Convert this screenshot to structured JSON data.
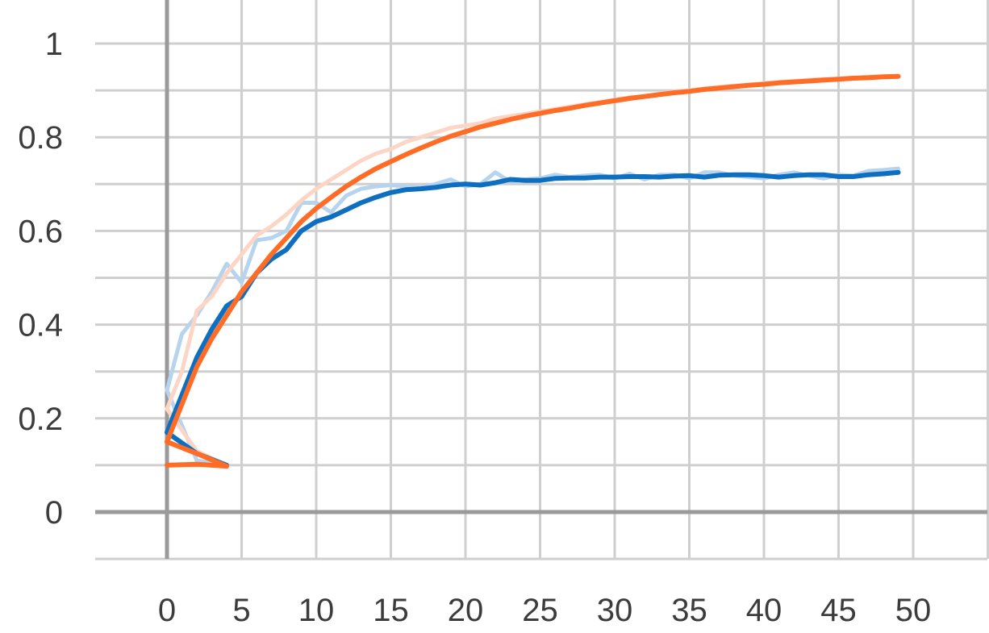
{
  "chart_data": {
    "type": "line",
    "title": "",
    "xlabel": "",
    "ylabel": "",
    "xlim": [
      -5,
      55
    ],
    "ylim": [
      -0.1,
      1.05
    ],
    "x_ticks": [
      "0",
      "5",
      "10",
      "15",
      "20",
      "25",
      "30",
      "35",
      "40",
      "45",
      "50"
    ],
    "y_ticks": [
      "0",
      "0.2",
      "0.4",
      "0.6",
      "0.8",
      "1"
    ],
    "grid": true,
    "legend": "none",
    "series": [
      {
        "color": "#0e6fc1",
        "raw_color": "#b7d4ee",
        "segments": [
          {
            "x": [
              0,
              2,
              4
            ],
            "smoothed": [
              0.17,
              0.125,
              0.1
            ],
            "raw": [
              0.26,
              0.11,
              0.1
            ]
          },
          {
            "x": [
              0,
              1,
              2,
              3,
              4,
              5,
              6,
              7,
              8,
              9,
              10,
              11,
              12,
              13,
              14,
              15,
              16,
              17,
              18,
              19,
              20,
              21,
              22,
              23,
              24,
              25,
              26,
              27,
              28,
              29,
              30,
              31,
              32,
              33,
              34,
              35,
              36,
              37,
              38,
              39,
              40,
              41,
              42,
              43,
              44,
              45,
              46,
              47,
              48,
              49
            ],
            "smoothed": [
              0.17,
              0.25,
              0.33,
              0.39,
              0.44,
              0.46,
              0.51,
              0.54,
              0.56,
              0.6,
              0.62,
              0.63,
              0.645,
              0.66,
              0.672,
              0.682,
              0.688,
              0.69,
              0.693,
              0.698,
              0.7,
              0.698,
              0.703,
              0.71,
              0.708,
              0.708,
              0.712,
              0.713,
              0.713,
              0.715,
              0.715,
              0.716,
              0.716,
              0.715,
              0.717,
              0.718,
              0.715,
              0.719,
              0.72,
              0.72,
              0.718,
              0.715,
              0.718,
              0.72,
              0.72,
              0.716,
              0.716,
              0.72,
              0.722,
              0.725
            ],
            "raw": [
              0.26,
              0.38,
              0.42,
              0.47,
              0.53,
              0.49,
              0.58,
              0.585,
              0.6,
              0.66,
              0.66,
              0.64,
              0.675,
              0.69,
              0.695,
              0.698,
              0.695,
              0.693,
              0.7,
              0.71,
              0.695,
              0.7,
              0.725,
              0.705,
              0.71,
              0.712,
              0.72,
              0.715,
              0.718,
              0.72,
              0.712,
              0.722,
              0.71,
              0.72,
              0.72,
              0.712,
              0.725,
              0.725,
              0.718,
              0.715,
              0.712,
              0.72,
              0.725,
              0.718,
              0.712,
              0.72,
              0.718,
              0.728,
              0.73,
              0.733
            ]
          }
        ]
      },
      {
        "color": "#fe6c26",
        "raw_color": "#fdd5c5",
        "segments": [
          {
            "x": [
              0,
              2,
              4
            ],
            "smoothed": [
              0.1,
              0.102,
              0.098
            ],
            "raw": [
              0.1,
              0.1,
              0.1
            ]
          },
          {
            "x": [
              0,
              2,
              4
            ],
            "smoothed": [
              0.15,
              0.125,
              0.098
            ],
            "raw": [
              0.22,
              0.13,
              0.1
            ]
          },
          {
            "x": [
              0,
              1,
              2,
              3,
              4,
              5,
              6,
              7,
              8,
              9,
              10,
              11,
              12,
              13,
              14,
              15,
              16,
              17,
              18,
              19,
              20,
              21,
              22,
              23,
              24,
              25,
              26,
              27,
              28,
              29,
              30,
              31,
              32,
              33,
              34,
              35,
              36,
              37,
              38,
              39,
              40,
              41,
              42,
              43,
              44,
              45,
              46,
              47,
              48,
              49
            ],
            "smoothed": [
              0.15,
              0.23,
              0.31,
              0.37,
              0.42,
              0.47,
              0.51,
              0.55,
              0.585,
              0.62,
              0.648,
              0.672,
              0.695,
              0.715,
              0.733,
              0.748,
              0.763,
              0.777,
              0.79,
              0.802,
              0.812,
              0.822,
              0.83,
              0.838,
              0.845,
              0.851,
              0.857,
              0.862,
              0.868,
              0.873,
              0.878,
              0.883,
              0.887,
              0.891,
              0.895,
              0.898,
              0.902,
              0.905,
              0.908,
              0.911,
              0.913,
              0.916,
              0.918,
              0.92,
              0.922,
              0.924,
              0.926,
              0.927,
              0.929,
              0.93
            ],
            "raw": [
              0.22,
              0.3,
              0.43,
              0.46,
              0.51,
              0.55,
              0.59,
              0.61,
              0.635,
              0.665,
              0.69,
              0.71,
              0.73,
              0.75,
              0.765,
              0.775,
              0.79,
              0.8,
              0.81,
              0.82,
              0.825,
              0.83,
              0.84,
              0.845,
              0.85,
              0.855,
              0.86,
              0.865,
              0.87,
              0.875,
              0.88,
              0.885,
              0.888,
              0.893,
              0.897,
              0.9,
              0.904,
              0.907,
              0.91,
              0.912,
              0.915,
              0.918,
              0.92,
              0.922,
              0.924,
              0.925,
              0.927,
              0.929,
              0.93,
              0.931
            ]
          }
        ]
      }
    ]
  }
}
